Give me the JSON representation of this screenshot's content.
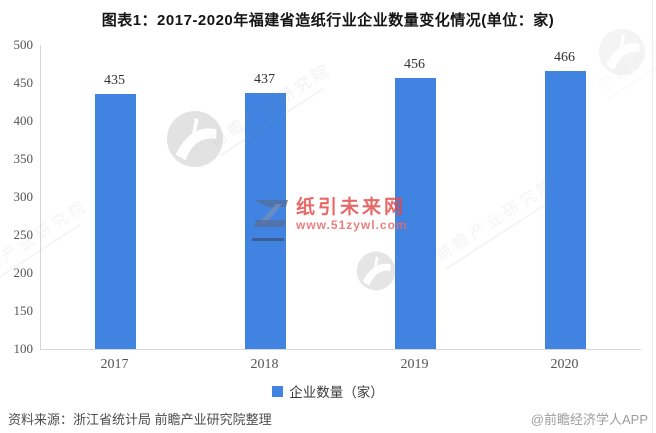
{
  "title": "图表1：2017-2020年福建省造纸行业企业数量变化情况(单位：家)",
  "chart_data": {
    "type": "bar",
    "title": "图表1：2017-2020年福建省造纸行业企业数量变化情况(单位：家)",
    "categories": [
      "2017",
      "2018",
      "2019",
      "2020"
    ],
    "values": [
      435,
      437,
      456,
      466
    ],
    "series_name": "企业数量（家）",
    "xlabel": "",
    "ylabel": "",
    "ylim": [
      100,
      500
    ],
    "yticks": [
      100,
      150,
      200,
      250,
      300,
      350,
      400,
      450,
      500
    ],
    "grid": false,
    "legend_position": "bottom",
    "bar_color": "#4183E0",
    "value_labels": [
      435,
      437,
      456,
      466
    ]
  },
  "legend": {
    "label": "企业数量（家）"
  },
  "footer": {
    "source": "资料来源：浙江省统计局 前瞻产业研究院整理",
    "credit": "@前瞻经济学人APP"
  },
  "watermarks": {
    "red_logo": "Z",
    "red_title": "纸引未来网",
    "red_url": "www.51zywl.com",
    "gray_text": "前瞻产业研究院"
  },
  "colors": {
    "bar": "#4183E0",
    "red_watermark": "#E24846"
  }
}
